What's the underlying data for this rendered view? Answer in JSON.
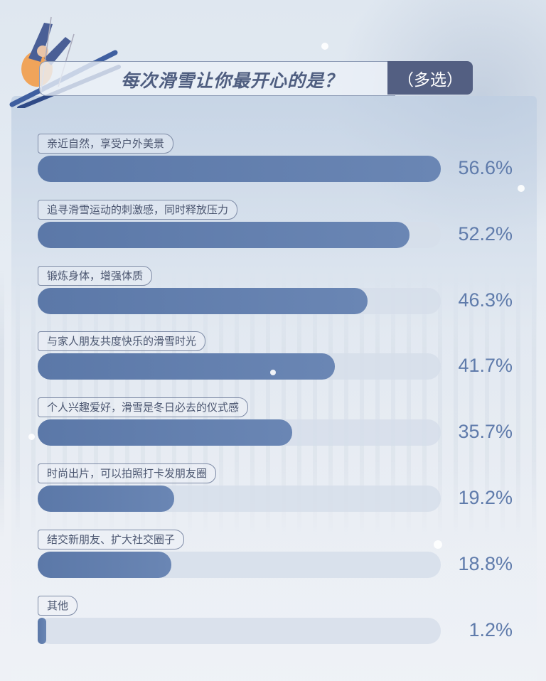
{
  "title": "每次滑雪让你最开心的是？",
  "tag": "（多选）",
  "chart_data": {
    "type": "bar",
    "orientation": "horizontal",
    "title": "每次滑雪让你最开心的是？（多选）",
    "categories": [
      "亲近自然，享受户外美景",
      "追寻滑雪运动的刺激感，同时释放压力",
      "锻炼身体，增强体质",
      "与家人朋友共度快乐的滑雪时光",
      "个人兴趣爱好，滑雪是冬日必去的仪式感",
      "时尚出片，可以拍照打卡发朋友圈",
      "结交新朋友、扩大社交圈子",
      "其他"
    ],
    "values": [
      56.6,
      52.2,
      46.3,
      41.7,
      35.7,
      19.2,
      18.8,
      1.2
    ],
    "labels": [
      "56.6%",
      "52.2%",
      "46.3%",
      "41.7%",
      "35.7%",
      "19.2%",
      "18.8%",
      "1.2%"
    ],
    "unit": "%",
    "grid": false,
    "bar_color": "#5f7bab",
    "track_color": "#d6deea"
  }
}
